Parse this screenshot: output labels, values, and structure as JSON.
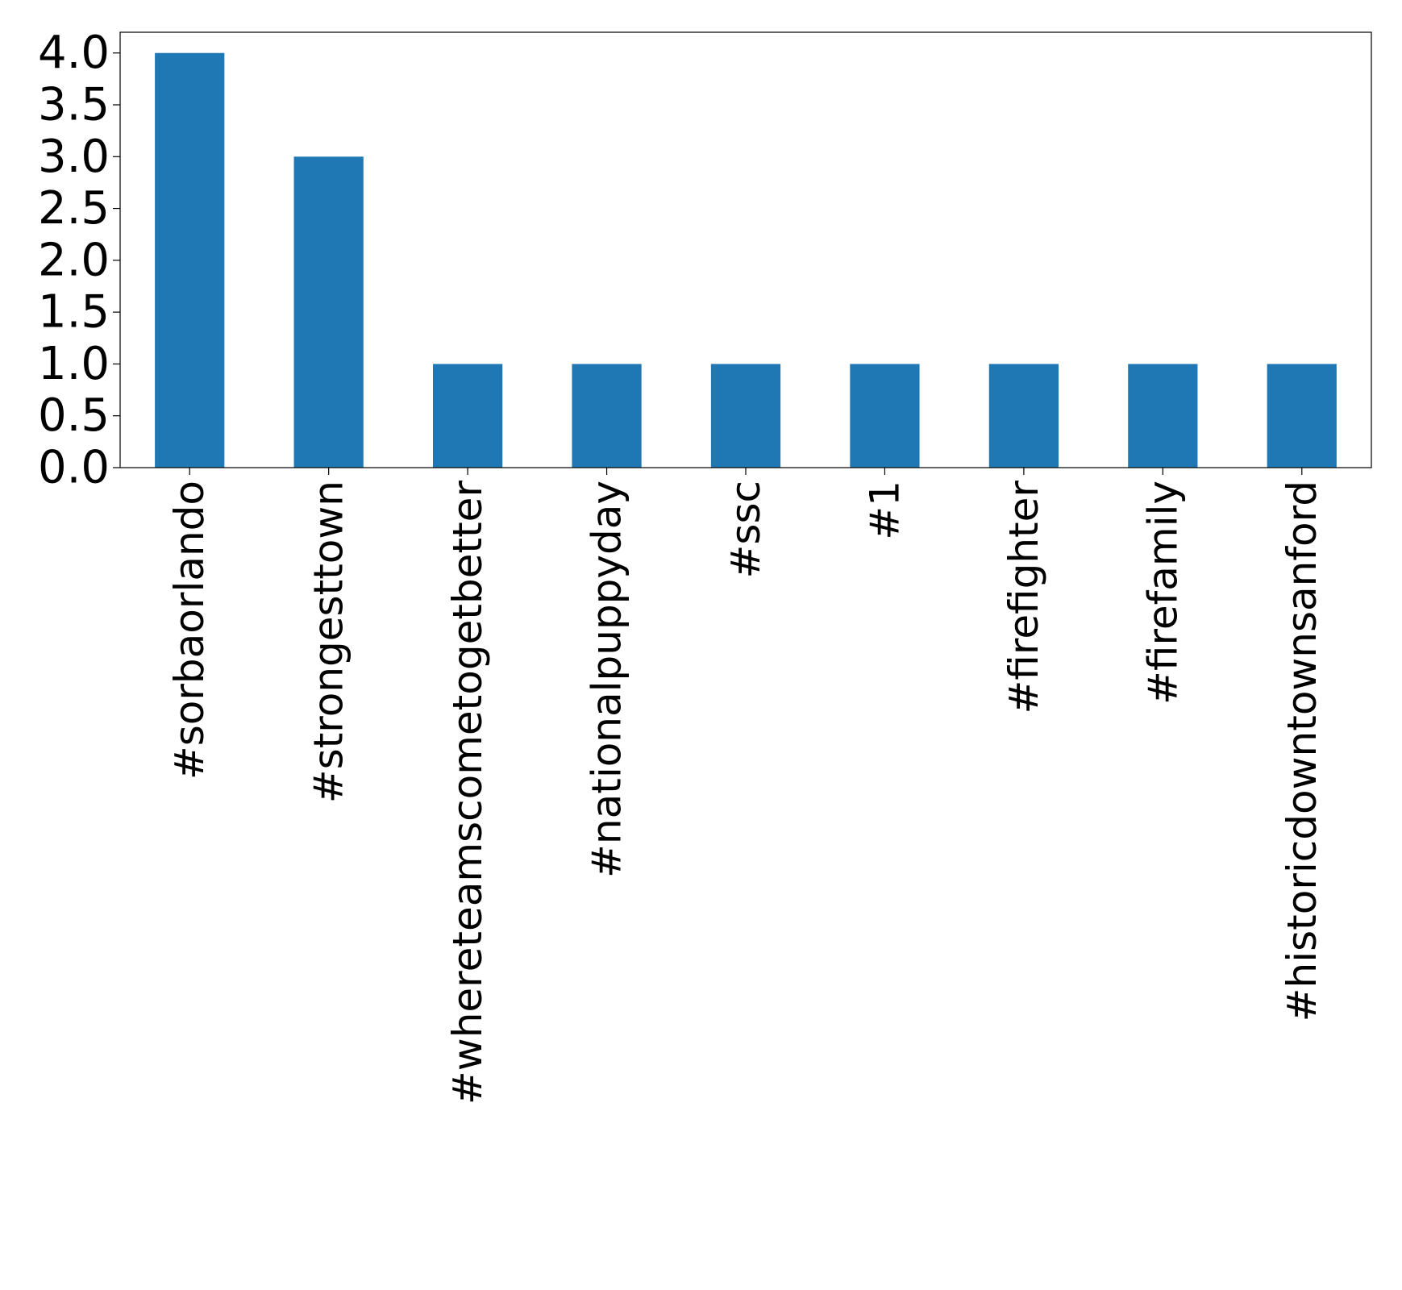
{
  "chart_data": {
    "type": "bar",
    "title": "",
    "xlabel": "",
    "ylabel": "",
    "categories": [
      "#sorbaorlando",
      "#strongesttown",
      "#whereteamscometogetbetter",
      "#nationalpuppyday",
      "#ssc",
      "#1",
      "#firefighter",
      "#firefamily",
      "#historicdowntownsanford"
    ],
    "values": [
      4,
      3,
      1,
      1,
      1,
      1,
      1,
      1,
      1
    ],
    "ylim": [
      0,
      4.2
    ],
    "yticks": [
      "0.0",
      "0.5",
      "1.0",
      "1.5",
      "2.0",
      "2.5",
      "3.0",
      "3.5",
      "4.0"
    ],
    "grid": false,
    "legend": "none",
    "bar_color": "#1f77b4"
  }
}
